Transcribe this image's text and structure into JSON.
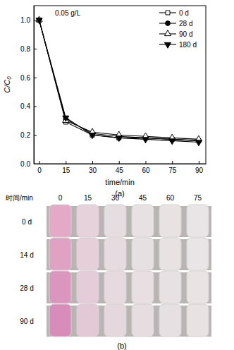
{
  "chart_data": {
    "type": "line",
    "title": "(a)",
    "annotation": "0.05 g/L",
    "x_label": "time/min",
    "y_label": "C/C₀",
    "x": [
      0,
      15,
      30,
      45,
      60,
      75,
      90
    ],
    "series": [
      {
        "name": "0 d",
        "color": "#000000",
        "marker": "square-open",
        "line_style": "solid",
        "values": [
          1.0,
          0.29,
          0.2,
          0.18,
          0.18,
          0.17,
          0.16
        ]
      },
      {
        "name": "28 d",
        "color": "#000000",
        "marker": "circle",
        "line_style": "solid",
        "values": [
          1.0,
          0.31,
          0.21,
          0.19,
          0.18,
          0.17,
          0.16
        ]
      },
      {
        "name": "90 d",
        "color": "#000000",
        "marker": "triangle-open",
        "line_style": "solid",
        "values": [
          1.0,
          0.3,
          0.22,
          0.2,
          0.19,
          0.18,
          0.17
        ]
      },
      {
        "name": "180 d",
        "color": "#000000",
        "marker": "triangle-down",
        "line_style": "solid",
        "values": [
          1.0,
          0.32,
          0.2,
          0.18,
          0.17,
          0.16,
          0.15
        ]
      }
    ],
    "xlim": [
      -3,
      94
    ],
    "xticks": [
      0,
      15,
      30,
      45,
      60,
      75,
      90
    ],
    "ylim": [
      0,
      1.1
    ],
    "yticks": [
      {
        "value": 0,
        "label": "0.0"
      },
      0.2,
      0.4,
      0.6,
      0.8,
      {
        "value": 1,
        "label": "1.0"
      }
    ],
    "legend": "upper right",
    "grid": false
  },
  "panel_b": {
    "label": "(b)",
    "header": "时间/min",
    "times": [
      0,
      15,
      30,
      45,
      60,
      75
    ],
    "rows": [
      "0 d",
      "14 d",
      "28 d",
      "90 d"
    ],
    "tube_colors": [
      [
        "#e3a9c6",
        "#e6d2db",
        "#e6dde0",
        "#e8e1e3",
        "#e8e2e3",
        "#e9e4e5"
      ],
      [
        "#e0a2c3",
        "#e5cfd9",
        "#e6dbdf",
        "#e7e0e2",
        "#e8e2e3",
        "#e9e4e5"
      ],
      [
        "#db96bd",
        "#e4cdd8",
        "#e6dade",
        "#e7dfe1",
        "#e8e1e3",
        "#e9e3e4"
      ],
      [
        "#d78cba",
        "#e3c9d6",
        "#e5d8dd",
        "#e6dde0",
        "#e7e0e2",
        "#e8e2e3"
      ]
    ]
  }
}
